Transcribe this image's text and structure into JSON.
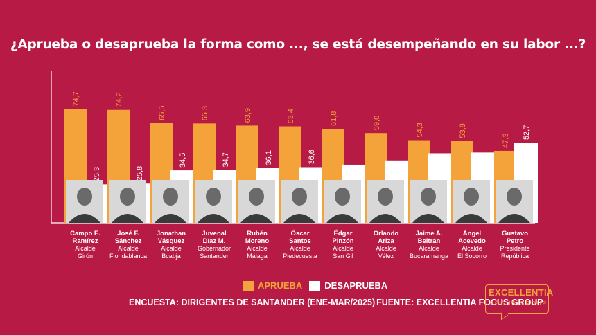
{
  "title": "¿Aprueba o desaprueba la forma como ..., se está desempeñando en su labor ...?",
  "legend": {
    "aprueba": "APRUEBA",
    "desaprueba": "DESAPRUEBA"
  },
  "footer": {
    "encuesta": "ENCUESTA: DIRIGENTES DE SANTANDER (ENE-MAR/2025)",
    "fuente": "FUENTE: EXCELLENTIA FOCUS GROUP"
  },
  "logo": {
    "line1": "EXCELLENTIA",
    "line2": "FOCUS GROUP"
  },
  "colors": {
    "background": "#b71b45",
    "aprueba": "#f4a23a",
    "desaprueba": "#ffffff"
  },
  "chart_data": {
    "type": "bar",
    "ylim": [
      0,
      100
    ],
    "grid": false,
    "legend_position": "bottom-center",
    "categories": [
      {
        "name": "Campo E. Ramírez",
        "role": "Alcalde Girón"
      },
      {
        "name": "José F. Sánchez",
        "role": "Alcalde Floridablanca"
      },
      {
        "name": "Jonathan Vásquez",
        "role": "Alcalde Bcabja"
      },
      {
        "name": "Juvenal Díaz M.",
        "role": "Gobernador Santander"
      },
      {
        "name": "Rubén Moreno",
        "role": "Alcalde Málaga"
      },
      {
        "name": "Óscar Santos",
        "role": "Alcalde Piedecuesta"
      },
      {
        "name": "Édgar Pinzón",
        "role": "Alcalde San Gil"
      },
      {
        "name": "Orlando Ariza",
        "role": "Alcalde Vélez"
      },
      {
        "name": "Jaime A. Beltrán",
        "role": "Alcalde Bucaramanga"
      },
      {
        "name": "Ángel Acevedo",
        "role": "Alcalde El Socorro"
      },
      {
        "name": "Gustavo Petro",
        "role": "Presidente República"
      }
    ],
    "series": [
      {
        "name": "APRUEBA",
        "values": [
          74.7,
          74.2,
          65.5,
          65.3,
          63.9,
          63.4,
          61.8,
          59.0,
          54.3,
          53.8,
          47.3
        ],
        "labels": [
          "74,7",
          "74,2",
          "65,5",
          "65,3",
          "63,9",
          "63,4",
          "61,8",
          "59,0",
          "54,3",
          "53,8",
          "47,3"
        ]
      },
      {
        "name": "DESAPRUEBA",
        "values": [
          25.3,
          25.8,
          34.5,
          34.7,
          36.1,
          36.6,
          null,
          null,
          null,
          null,
          52.7
        ],
        "labels": [
          "25,3",
          "25,8",
          "34,5",
          "34,7",
          "36,1",
          "36,6",
          "",
          "",
          "",
          "",
          "52,7"
        ]
      }
    ]
  }
}
